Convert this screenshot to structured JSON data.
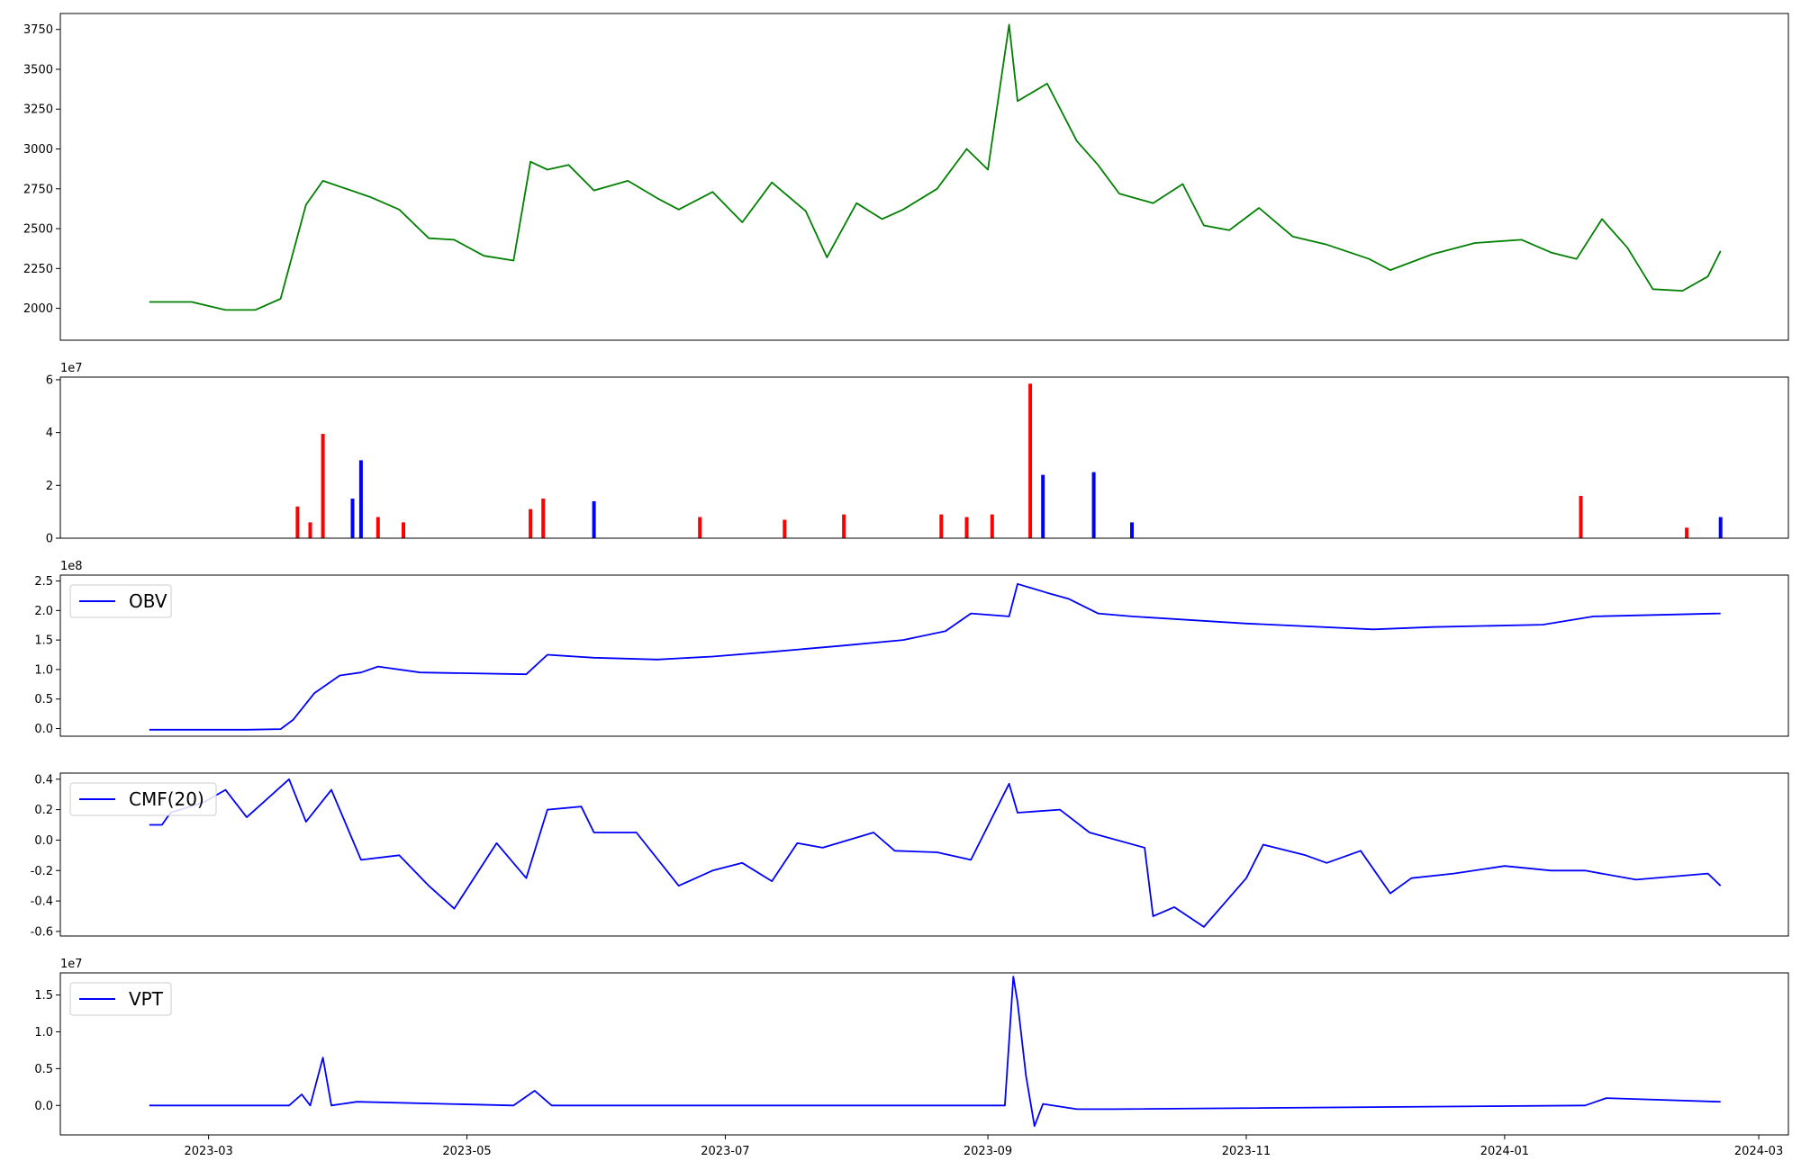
{
  "chart_data": [
    {
      "type": "line",
      "id": "price",
      "legend": "",
      "color": "#008000",
      "ylim": [
        1800,
        3850
      ],
      "yticks": [
        2000,
        2250,
        2500,
        2750,
        3000,
        3250,
        3500,
        3750
      ],
      "offset_label": "",
      "x": [
        "2023-02-15",
        "2023-02-25",
        "2023-03-05",
        "2023-03-12",
        "2023-03-18",
        "2023-03-24",
        "2023-03-28",
        "2023-04-08",
        "2023-04-15",
        "2023-04-22",
        "2023-04-28",
        "2023-05-05",
        "2023-05-12",
        "2023-05-16",
        "2023-05-20",
        "2023-05-25",
        "2023-05-31",
        "2023-06-08",
        "2023-06-15",
        "2023-06-20",
        "2023-06-28",
        "2023-07-05",
        "2023-07-12",
        "2023-07-20",
        "2023-07-25",
        "2023-08-01",
        "2023-08-07",
        "2023-08-12",
        "2023-08-20",
        "2023-08-27",
        "2023-09-01",
        "2023-09-06",
        "2023-09-08",
        "2023-09-15",
        "2023-09-22",
        "2023-09-27",
        "2023-10-02",
        "2023-10-10",
        "2023-10-17",
        "2023-10-22",
        "2023-10-28",
        "2023-11-04",
        "2023-11-12",
        "2023-11-20",
        "2023-11-30",
        "2023-12-05",
        "2023-12-15",
        "2023-12-25",
        "2024-01-05",
        "2024-01-12",
        "2024-01-18",
        "2024-01-24",
        "2024-01-30",
        "2024-02-05",
        "2024-02-12",
        "2024-02-18",
        "2024-02-21"
      ],
      "values": [
        2040,
        2040,
        1990,
        1990,
        2060,
        2650,
        2800,
        2700,
        2620,
        2440,
        2430,
        2330,
        2300,
        2920,
        2870,
        2900,
        2740,
        2800,
        2690,
        2620,
        2730,
        2540,
        2790,
        2610,
        2320,
        2660,
        2560,
        2620,
        2750,
        3000,
        2870,
        3780,
        3300,
        3410,
        3050,
        2900,
        2720,
        2660,
        2780,
        2520,
        2490,
        2630,
        2450,
        2400,
        2310,
        2240,
        2340,
        2410,
        2430,
        2350,
        2310,
        2560,
        2380,
        2120,
        2110,
        2200,
        2360
      ]
    },
    {
      "type": "bar",
      "id": "volume",
      "legend": "",
      "colors": {
        "up": "#ff0000",
        "down": "#0000ff"
      },
      "ylim": [
        0,
        6.1
      ],
      "yticks": [
        0,
        2,
        4,
        6
      ],
      "offset_label": "1e7",
      "x": [
        "2023-03-22",
        "2023-03-25",
        "2023-03-28",
        "2023-04-04",
        "2023-04-06",
        "2023-04-10",
        "2023-04-16",
        "2023-05-16",
        "2023-05-19",
        "2023-05-31",
        "2023-06-25",
        "2023-07-15",
        "2023-07-29",
        "2023-08-21",
        "2023-08-27",
        "2023-09-02",
        "2023-09-11",
        "2023-09-14",
        "2023-09-26",
        "2023-10-05",
        "2024-01-19",
        "2024-02-13",
        "2024-02-21"
      ],
      "values": [
        1.2,
        0.6,
        3.95,
        1.5,
        2.95,
        0.8,
        0.6,
        1.1,
        1.5,
        1.4,
        0.8,
        0.7,
        0.9,
        0.9,
        0.8,
        0.9,
        5.85,
        2.4,
        2.5,
        0.6,
        1.6,
        0.4,
        0.8
      ],
      "direction": [
        "up",
        "up",
        "up",
        "down",
        "down",
        "up",
        "up",
        "up",
        "up",
        "down",
        "up",
        "up",
        "up",
        "up",
        "up",
        "up",
        "up",
        "down",
        "down",
        "down",
        "up",
        "up",
        "down"
      ]
    },
    {
      "type": "line",
      "id": "obv",
      "legend": "OBV",
      "color": "#0000ff",
      "ylim": [
        -0.13,
        2.6
      ],
      "yticks": [
        0.0,
        0.5,
        1.0,
        1.5,
        2.0,
        2.5
      ],
      "offset_label": "1e8",
      "x": [
        "2023-02-15",
        "2023-03-10",
        "2023-03-18",
        "2023-03-21",
        "2023-03-26",
        "2023-04-01",
        "2023-04-06",
        "2023-04-10",
        "2023-04-20",
        "2023-05-15",
        "2023-05-20",
        "2023-05-31",
        "2023-06-15",
        "2023-06-28",
        "2023-07-12",
        "2023-07-28",
        "2023-08-12",
        "2023-08-22",
        "2023-08-28",
        "2023-09-06",
        "2023-09-08",
        "2023-09-15",
        "2023-09-20",
        "2023-09-27",
        "2023-10-05",
        "2023-11-01",
        "2023-12-01",
        "2023-12-15",
        "2024-01-10",
        "2024-01-22",
        "2024-02-21"
      ],
      "values": [
        -0.02,
        -0.02,
        -0.01,
        0.15,
        0.6,
        0.9,
        0.95,
        1.05,
        0.95,
        0.92,
        1.25,
        1.2,
        1.17,
        1.22,
        1.3,
        1.4,
        1.5,
        1.65,
        1.95,
        1.9,
        2.45,
        2.3,
        2.2,
        1.95,
        1.9,
        1.78,
        1.68,
        1.72,
        1.76,
        1.9,
        1.95
      ]
    },
    {
      "type": "line",
      "id": "cmf",
      "legend": "CMF(20)",
      "color": "#0000ff",
      "ylim": [
        -0.63,
        0.44
      ],
      "yticks": [
        -0.6,
        -0.4,
        -0.2,
        0.0,
        0.2,
        0.4
      ],
      "offset_label": "",
      "x": [
        "2023-02-15",
        "2023-02-18",
        "2023-02-20",
        "2023-02-28",
        "2023-03-05",
        "2023-03-10",
        "2023-03-20",
        "2023-03-24",
        "2023-03-30",
        "2023-04-06",
        "2023-04-15",
        "2023-04-22",
        "2023-04-28",
        "2023-05-08",
        "2023-05-15",
        "2023-05-20",
        "2023-05-28",
        "2023-05-31",
        "2023-06-10",
        "2023-06-20",
        "2023-06-28",
        "2023-07-05",
        "2023-07-12",
        "2023-07-18",
        "2023-07-24",
        "2023-08-05",
        "2023-08-10",
        "2023-08-20",
        "2023-08-28",
        "2023-09-06",
        "2023-09-08",
        "2023-09-18",
        "2023-09-25",
        "2023-10-08",
        "2023-10-10",
        "2023-10-15",
        "2023-10-22",
        "2023-11-01",
        "2023-11-05",
        "2023-11-15",
        "2023-11-20",
        "2023-11-28",
        "2023-12-05",
        "2023-12-10",
        "2023-12-20",
        "2024-01-01",
        "2024-01-12",
        "2024-01-20",
        "2024-02-01",
        "2024-02-18",
        "2024-02-21"
      ],
      "values": [
        0.1,
        0.1,
        0.18,
        0.25,
        0.33,
        0.15,
        0.4,
        0.12,
        0.33,
        -0.13,
        -0.1,
        -0.3,
        -0.45,
        -0.02,
        -0.25,
        0.2,
        0.22,
        0.05,
        0.05,
        -0.3,
        -0.2,
        -0.15,
        -0.27,
        -0.02,
        -0.05,
        0.05,
        -0.07,
        -0.08,
        -0.13,
        0.37,
        0.18,
        0.2,
        0.05,
        -0.05,
        -0.5,
        -0.44,
        -0.57,
        -0.25,
        -0.03,
        -0.1,
        -0.15,
        -0.07,
        -0.35,
        -0.25,
        -0.22,
        -0.17,
        -0.2,
        -0.2,
        -0.26,
        -0.22,
        -0.3
      ]
    },
    {
      "type": "line",
      "id": "vpt",
      "legend": "VPT",
      "color": "#0000ff",
      "ylim": [
        -0.4,
        1.8
      ],
      "yticks": [
        0.0,
        0.5,
        1.0,
        1.5
      ],
      "offset_label": "1e7",
      "x": [
        "2023-02-15",
        "2023-03-20",
        "2023-03-23",
        "2023-03-25",
        "2023-03-28",
        "2023-03-30",
        "2023-04-05",
        "2023-05-12",
        "2023-05-17",
        "2023-05-21",
        "2023-05-25",
        "2023-07-01",
        "2023-09-05",
        "2023-09-07",
        "2023-09-08",
        "2023-09-10",
        "2023-09-12",
        "2023-09-14",
        "2023-09-22",
        "2023-10-01",
        "2024-01-20",
        "2024-01-25",
        "2024-02-21"
      ],
      "values": [
        0.0,
        0.0,
        0.15,
        0.0,
        0.65,
        0.0,
        0.05,
        0.0,
        0.2,
        0.0,
        0.0,
        0.0,
        0.0,
        1.75,
        1.4,
        0.4,
        -0.28,
        0.02,
        -0.05,
        -0.05,
        0.0,
        0.1,
        0.05
      ]
    }
  ],
  "xaxis": {
    "start": "2023-01-25",
    "end": "2024-03-08",
    "ticks": [
      "2023-03-01",
      "2023-05-01",
      "2023-07-01",
      "2023-09-01",
      "2023-11-01",
      "2024-01-01",
      "2024-03-01"
    ],
    "tick_labels": [
      "2023-03",
      "2023-05",
      "2023-07",
      "2023-09",
      "2023-11",
      "2024-01",
      "2024-03"
    ]
  }
}
